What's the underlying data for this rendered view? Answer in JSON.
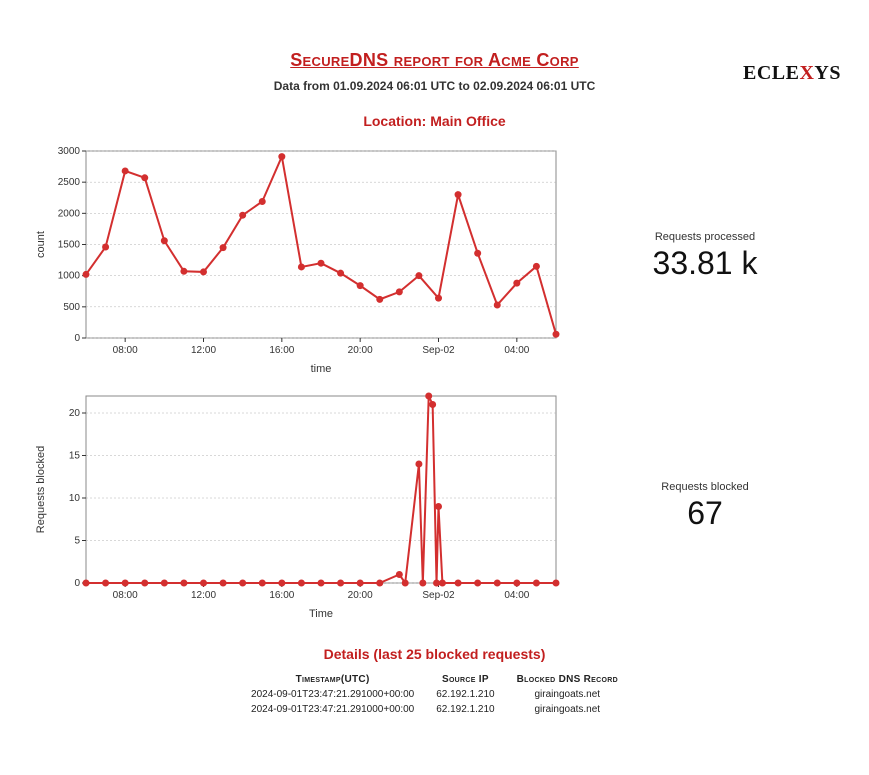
{
  "logo": {
    "pre": "ECLE",
    "mid": "X",
    "post": "YS"
  },
  "title": "SecureDNS report for Acme Corp",
  "subtitle": "Data from 01.09.2024 06:01 UTC to 02.09.2024 06:01 UTC",
  "location": "Location: Main Office",
  "metrics": {
    "processed": {
      "label": "Requests processed",
      "value": "33.81 k"
    },
    "blocked": {
      "label": "Requests blocked",
      "value": "67"
    }
  },
  "chart1": {
    "type": "line",
    "stroke": "#d32f2f",
    "marker_fill": "#d32f2f",
    "line_width": 2,
    "marker_r": 3.5,
    "grid_color": "#b0b0b0",
    "bg": "#ffffff",
    "ylabel": "count",
    "xlabel": "time",
    "ylabel_fontsize": 11,
    "xlabel_fontsize": 11,
    "ylim": [
      0,
      3000
    ],
    "yticks": [
      0,
      500,
      1000,
      1500,
      2000,
      2500,
      3000
    ],
    "xticks": [
      "08:00",
      "12:00",
      "16:00",
      "20:00",
      "Sep-02",
      "04:00"
    ],
    "xtick_times": [
      8,
      12,
      16,
      20,
      24,
      28
    ],
    "x_range": [
      6,
      30
    ],
    "points": [
      {
        "t": 6,
        "v": 1020
      },
      {
        "t": 7,
        "v": 1460
      },
      {
        "t": 8,
        "v": 2680
      },
      {
        "t": 9,
        "v": 2570
      },
      {
        "t": 10,
        "v": 1560
      },
      {
        "t": 11,
        "v": 1070
      },
      {
        "t": 12,
        "v": 1060
      },
      {
        "t": 13,
        "v": 1450
      },
      {
        "t": 14,
        "v": 1970
      },
      {
        "t": 15,
        "v": 2190
      },
      {
        "t": 16,
        "v": 2910
      },
      {
        "t": 17,
        "v": 1140
      },
      {
        "t": 18,
        "v": 1200
      },
      {
        "t": 19,
        "v": 1040
      },
      {
        "t": 20,
        "v": 840
      },
      {
        "t": 21,
        "v": 620
      },
      {
        "t": 22,
        "v": 740
      },
      {
        "t": 23,
        "v": 1000
      },
      {
        "t": 24,
        "v": 640
      },
      {
        "t": 25,
        "v": 2300
      },
      {
        "t": 26,
        "v": 1360
      },
      {
        "t": 27,
        "v": 530
      },
      {
        "t": 28,
        "v": 880
      },
      {
        "t": 29,
        "v": 1150
      },
      {
        "t": 30,
        "v": 60
      }
    ]
  },
  "chart2": {
    "type": "line",
    "stroke": "#d32f2f",
    "marker_fill": "#d32f2f",
    "line_width": 2,
    "marker_r": 3.5,
    "grid_color": "#b0b0b0",
    "bg": "#ffffff",
    "ylabel": "Requests blocked",
    "xlabel": "Time",
    "ylabel_fontsize": 11,
    "xlabel_fontsize": 11,
    "ylim": [
      0,
      22
    ],
    "yticks": [
      0,
      5,
      10,
      15,
      20
    ],
    "xticks": [
      "08:00",
      "12:00",
      "16:00",
      "20:00",
      "Sep-02",
      "04:00"
    ],
    "xtick_times": [
      8,
      12,
      16,
      20,
      24,
      28
    ],
    "x_range": [
      6,
      30
    ],
    "points": [
      {
        "t": 6,
        "v": 0
      },
      {
        "t": 7,
        "v": 0
      },
      {
        "t": 8,
        "v": 0
      },
      {
        "t": 9,
        "v": 0
      },
      {
        "t": 10,
        "v": 0
      },
      {
        "t": 11,
        "v": 0
      },
      {
        "t": 12,
        "v": 0
      },
      {
        "t": 13,
        "v": 0
      },
      {
        "t": 14,
        "v": 0
      },
      {
        "t": 15,
        "v": 0
      },
      {
        "t": 16,
        "v": 0
      },
      {
        "t": 17,
        "v": 0
      },
      {
        "t": 18,
        "v": 0
      },
      {
        "t": 19,
        "v": 0
      },
      {
        "t": 20,
        "v": 0
      },
      {
        "t": 21,
        "v": 0
      },
      {
        "t": 22,
        "v": 1
      },
      {
        "t": 22.3,
        "v": 0
      },
      {
        "t": 23,
        "v": 14
      },
      {
        "t": 23.2,
        "v": 0
      },
      {
        "t": 23.5,
        "v": 22
      },
      {
        "t": 23.7,
        "v": 21
      },
      {
        "t": 23.9,
        "v": 0
      },
      {
        "t": 24,
        "v": 9
      },
      {
        "t": 24.2,
        "v": 0
      },
      {
        "t": 25,
        "v": 0
      },
      {
        "t": 26,
        "v": 0
      },
      {
        "t": 27,
        "v": 0
      },
      {
        "t": 28,
        "v": 0
      },
      {
        "t": 29,
        "v": 0
      },
      {
        "t": 30,
        "v": 0
      }
    ]
  },
  "details": {
    "title": "Details (last 25 blocked requests)",
    "columns": [
      "Timestamp(UTC)",
      "Source IP",
      "Blocked DNS Record"
    ],
    "rows": [
      [
        "2024-09-01T23:47:21.291000+00:00",
        "62.192.1.210",
        "giraingoats.net"
      ],
      [
        "2024-09-01T23:47:21.291000+00:00",
        "62.192.1.210",
        "giraingoats.net"
      ]
    ]
  }
}
